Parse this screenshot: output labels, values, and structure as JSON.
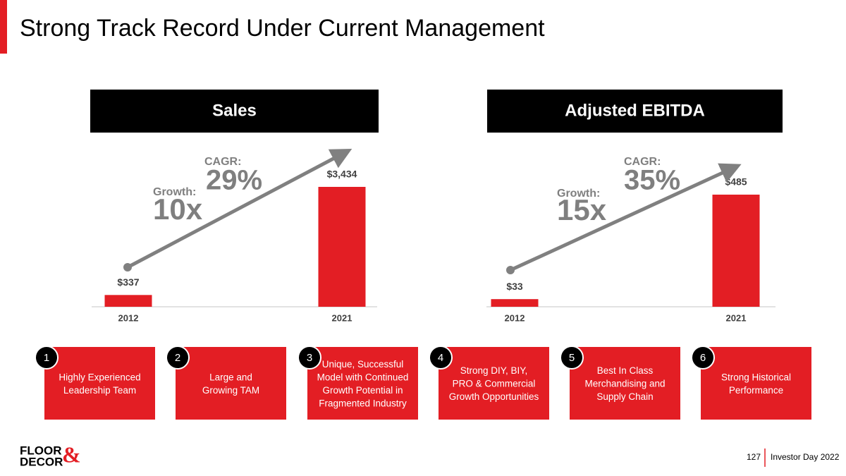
{
  "title": "Strong Track Record Under Current Management",
  "chart_data": [
    {
      "type": "bar",
      "title": "Sales",
      "categories": [
        "2012",
        "2021"
      ],
      "values": [
        337,
        3434
      ],
      "value_labels": [
        "$337",
        "$3,434"
      ],
      "color": "#e31e24",
      "annotations": {
        "growth_label": "Growth:",
        "growth": "10x",
        "cagr_label": "CAGR:",
        "cagr": "29%"
      }
    },
    {
      "type": "bar",
      "title": "Adjusted EBITDA",
      "categories": [
        "2012",
        "2021"
      ],
      "values": [
        33,
        485
      ],
      "value_labels": [
        "$33",
        "$485"
      ],
      "color": "#e31e24",
      "annotations": {
        "growth_label": "Growth:",
        "growth": "15x",
        "cagr_label": "CAGR:",
        "cagr": "35%"
      }
    }
  ],
  "pillars": [
    {
      "number": "1",
      "lines": [
        "Highly Experienced",
        "Leadership Team"
      ]
    },
    {
      "number": "2",
      "lines": [
        "Large and",
        "Growing TAM"
      ]
    },
    {
      "number": "3",
      "lines": [
        "Unique, Successful",
        "Model with Continued",
        "Growth Potential in",
        "Fragmented Industry"
      ]
    },
    {
      "number": "4",
      "lines": [
        "Strong DIY, BIY,",
        "PRO & Commercial",
        "Growth Opportunities"
      ]
    },
    {
      "number": "5",
      "lines": [
        "Best In Class",
        "Merchandising and",
        "Supply Chain"
      ]
    },
    {
      "number": "6",
      "lines": [
        "Strong Historical",
        "Performance"
      ]
    }
  ],
  "footer": {
    "logo_top": "FLOOR",
    "logo_bottom": "DECOR",
    "logo_amp": "&",
    "page": "127",
    "event": "Investor Day 2022"
  }
}
